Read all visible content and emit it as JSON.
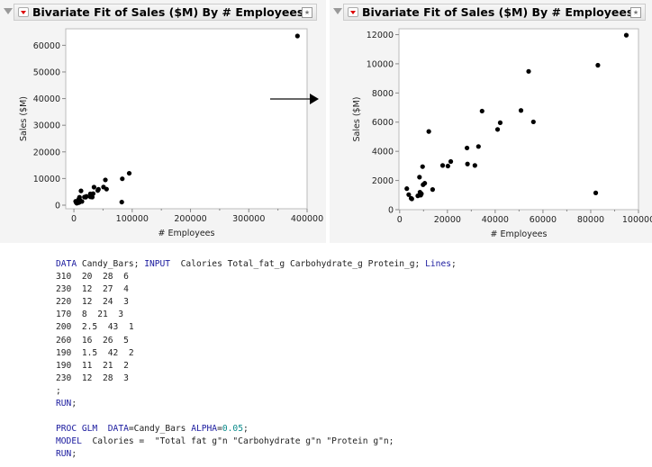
{
  "panels": [
    {
      "title": "Bivariate Fit of Sales ($M) By # Employees"
    },
    {
      "title": "Bivariate Fit of Sales ($M) By # Employees"
    }
  ],
  "arrow": "arrow-right-icon",
  "chart_data": [
    {
      "type": "scatter",
      "title": "Bivariate Fit of Sales ($M) By # Employees",
      "xlabel": "# Employees",
      "ylabel": "Sales ($M)",
      "xlim": [
        -14000,
        400000
      ],
      "ylim": [
        -1350,
        66200
      ],
      "xticks": [
        0,
        100000,
        200000,
        300000,
        400000
      ],
      "yticks": [
        0,
        10000,
        20000,
        30000,
        40000,
        50000,
        60000
      ],
      "x": [
        3000,
        3800,
        4800,
        5100,
        7600,
        8300,
        8500,
        8800,
        9100,
        9600,
        9800,
        10500,
        12200,
        13800,
        18000,
        20200,
        21400,
        28200,
        28400,
        31500,
        33000,
        34500,
        41000,
        42100,
        50800,
        54000,
        56000,
        82100,
        83000,
        94900,
        383500
      ],
      "y": [
        1440,
        1030,
        780,
        740,
        950,
        2230,
        1200,
        990,
        1090,
        2950,
        1710,
        1810,
        5360,
        1380,
        3030,
        2990,
        3300,
        4230,
        3130,
        3030,
        4330,
        6760,
        5500,
        5960,
        6800,
        9480,
        6020,
        1150,
        9900,
        11960,
        63500
      ]
    },
    {
      "type": "scatter",
      "title": "Bivariate Fit of Sales ($M) By # Employees",
      "xlabel": "# Employees",
      "ylabel": "Sales ($M)",
      "xlim": [
        -300,
        100000
      ],
      "ylim": [
        0,
        12400
      ],
      "xticks": [
        0,
        20000,
        40000,
        60000,
        80000,
        100000
      ],
      "yticks": [
        0,
        2000,
        4000,
        6000,
        8000,
        10000,
        12000
      ],
      "x": [
        3000,
        3800,
        4800,
        5100,
        7600,
        8300,
        8500,
        8800,
        9100,
        9600,
        9800,
        10500,
        12200,
        13800,
        18000,
        20200,
        21400,
        28200,
        28400,
        31500,
        33000,
        34500,
        41000,
        42100,
        50800,
        54000,
        56000,
        82100,
        83000,
        94900
      ],
      "y": [
        1440,
        1030,
        780,
        740,
        950,
        2230,
        1200,
        990,
        1090,
        2950,
        1710,
        1810,
        5360,
        1380,
        3030,
        2990,
        3300,
        4230,
        3130,
        3030,
        4330,
        6760,
        5500,
        5960,
        6800,
        9480,
        6020,
        1150,
        9900,
        11960
      ]
    }
  ],
  "code": [
    [
      [
        "kw",
        "DATA"
      ],
      [
        "t",
        " Candy_Bars; "
      ],
      [
        "kw",
        "INPUT"
      ],
      [
        "t",
        "  Calories Total_fat_g Carbohydrate_g Protein_g; "
      ],
      [
        "kw",
        "Lines"
      ],
      [
        "t",
        ";"
      ]
    ],
    [
      [
        "t",
        "310  20  28  6"
      ]
    ],
    [
      [
        "t",
        "230  12  27  4"
      ]
    ],
    [
      [
        "t",
        "220  12  24  3"
      ]
    ],
    [
      [
        "t",
        "170  8  21  3"
      ]
    ],
    [
      [
        "t",
        "200  2.5  43  1"
      ]
    ],
    [
      [
        "t",
        "260  16  26  5"
      ]
    ],
    [
      [
        "t",
        "190  1.5  42  2"
      ]
    ],
    [
      [
        "t",
        "190  11  21  2"
      ]
    ],
    [
      [
        "t",
        "230  12  28  3"
      ]
    ],
    [
      [
        "t",
        ";"
      ]
    ],
    [
      [
        "kw",
        "RUN"
      ],
      [
        "t",
        ";"
      ]
    ],
    [
      [
        "t",
        ""
      ]
    ],
    [
      [
        "kw",
        "PROC GLM"
      ],
      [
        "t",
        "  "
      ],
      [
        "kw",
        "DATA"
      ],
      [
        "t",
        "=Candy_Bars "
      ],
      [
        "kw",
        "ALPHA"
      ],
      [
        "t",
        "="
      ],
      [
        "num",
        "0.05"
      ],
      [
        "t",
        ";"
      ]
    ],
    [
      [
        "kw",
        "MODEL"
      ],
      [
        "t",
        "  Calories =  \"Total fat g\"n \"Carbohydrate g\"n \"Protein g\"n;"
      ]
    ],
    [
      [
        "kw",
        "RUN"
      ],
      [
        "t",
        ";"
      ]
    ]
  ]
}
